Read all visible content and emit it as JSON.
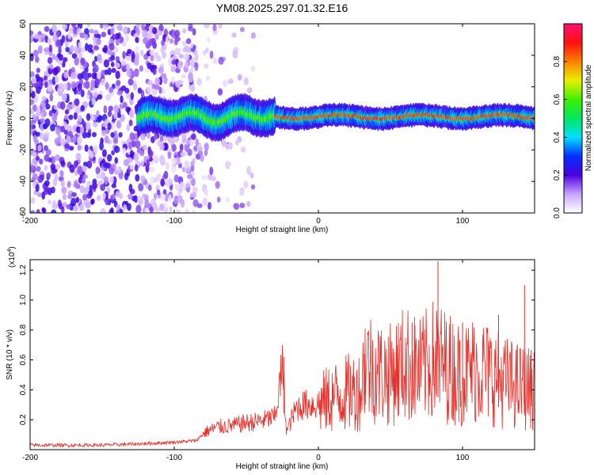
{
  "title": "YM08.2025.297.01.32.E16",
  "chart_data": [
    {
      "type": "heatmap",
      "xlabel": "Height of straight line (km)",
      "ylabel": "Frequency (Hz)",
      "xlim": [
        -200,
        150
      ],
      "ylim": [
        -60,
        60
      ],
      "xticks": [
        -200,
        -100,
        0,
        100
      ],
      "xtick_labels": [
        "-200",
        "-100",
        "0",
        "100"
      ],
      "yticks": [
        -60,
        -40,
        -20,
        0,
        20,
        40,
        60
      ],
      "ytick_labels": [
        "-60",
        "-40",
        "-20",
        "0",
        "20",
        "40",
        "60"
      ],
      "colorbar": {
        "label": "Normalized spectral amplitude",
        "range": [
          0,
          1
        ],
        "ticks": [
          0,
          0.2,
          0.4,
          0.6,
          0.8
        ],
        "tick_labels": [
          "0.0",
          "0.2",
          "0.4",
          "0.6",
          "0.8"
        ],
        "colormap": "rainbow"
      },
      "features": {
        "noise_region_x": [
          -200,
          -85
        ],
        "signal_band_start_x": -125,
        "signal_center_hz": 1,
        "signal_halfwidth_hz": 6
      }
    },
    {
      "type": "line",
      "xlabel": "Height of straight line (km)",
      "ylabel": "SNR (10 * v/v)",
      "ylabel_multiplier": "(x10",
      "ylabel_multiplier_exp": "4",
      "ylabel_multiplier_close": ")",
      "xlim": [
        -200,
        150
      ],
      "ylim": [
        0,
        1.27
      ],
      "xticks": [
        -200,
        -100,
        0,
        100
      ],
      "xtick_labels": [
        "-200",
        "-100",
        "0",
        "100"
      ],
      "yticks": [
        0.2,
        0.4,
        0.6,
        0.8,
        1.0,
        1.2
      ],
      "ytick_labels": [
        "0.2",
        "0.4",
        "0.6",
        "0.8",
        "1.0",
        "1.2"
      ],
      "color": "#e8302a",
      "series": [
        {
          "name": "SNR",
          "x": [
            -200,
            -150,
            -120,
            -100,
            -85,
            -78,
            -70,
            -60,
            -50,
            -40,
            -30,
            -25,
            -22,
            -18,
            -15,
            -10,
            0,
            10,
            20,
            30,
            32,
            40,
            50,
            60,
            70,
            80,
            90,
            100,
            110,
            120,
            130,
            140,
            150
          ],
          "y": [
            0.03,
            0.03,
            0.04,
            0.05,
            0.06,
            0.12,
            0.15,
            0.16,
            0.18,
            0.19,
            0.22,
            0.55,
            0.12,
            0.22,
            0.28,
            0.3,
            0.3,
            0.35,
            0.38,
            0.4,
            0.6,
            0.52,
            0.5,
            0.58,
            0.52,
            0.6,
            0.55,
            0.5,
            0.55,
            0.5,
            0.45,
            0.42,
            0.4
          ],
          "spikes": [
            {
              "x": 83,
              "y": 1.26
            },
            {
              "x": 143,
              "y": 1.1
            },
            {
              "x": 82,
              "y": 0.93
            },
            {
              "x": 67,
              "y": 0.83
            },
            {
              "x": 65,
              "y": 0.85
            },
            {
              "x": 125,
              "y": 0.9
            },
            {
              "x": -24,
              "y": 0.62
            },
            {
              "x": 32,
              "y": 0.64
            },
            {
              "x": 100,
              "y": 0.85
            }
          ]
        }
      ]
    }
  ]
}
